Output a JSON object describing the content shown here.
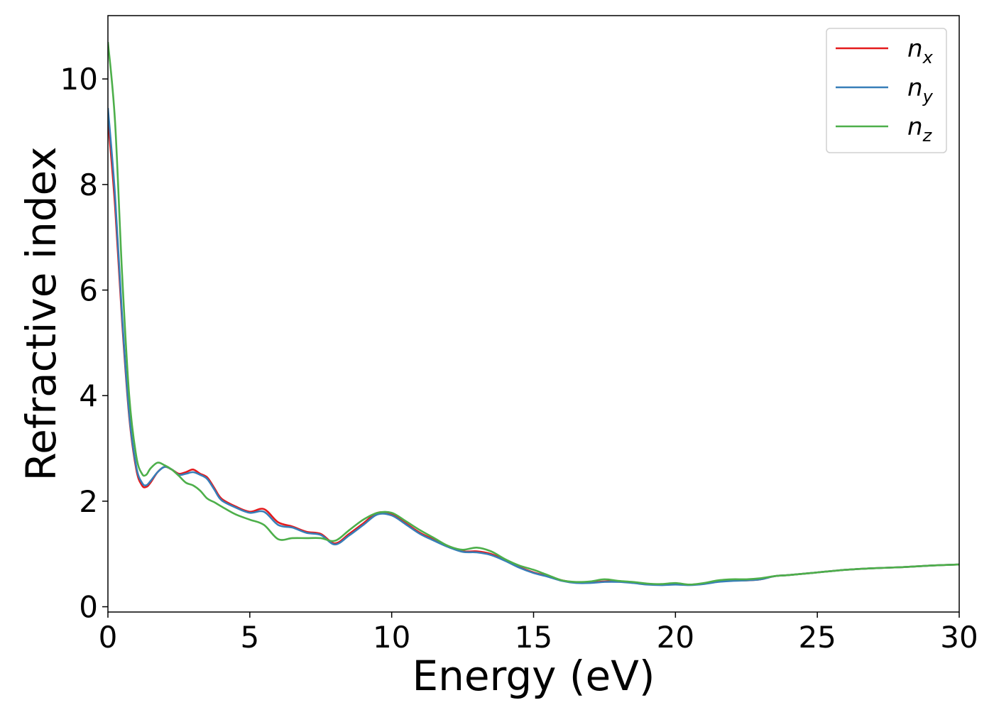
{
  "chart_data": {
    "type": "line",
    "title": "",
    "xlabel": "Energy (eV)",
    "ylabel": "Refractive index",
    "xlim": [
      0,
      30
    ],
    "ylim": [
      -0.1,
      11.2
    ],
    "xticks": [
      0,
      5,
      10,
      15,
      20,
      25,
      30
    ],
    "yticks": [
      0,
      2,
      4,
      6,
      8,
      10
    ],
    "grid": false,
    "legend_position": "top-right",
    "series": [
      {
        "name": "n",
        "sub": "x",
        "color": "#e41a1c",
        "x": [
          0,
          0.25,
          0.5,
          0.75,
          1.0,
          1.2,
          1.35,
          1.5,
          1.75,
          2.0,
          2.25,
          2.5,
          2.75,
          3.0,
          3.25,
          3.5,
          3.75,
          4.0,
          4.5,
          5.0,
          5.5,
          6.0,
          6.5,
          7.0,
          7.5,
          8.0,
          8.5,
          9.0,
          9.5,
          10.0,
          10.5,
          11.0,
          11.5,
          12.0,
          12.5,
          13.0,
          13.5,
          14.0,
          14.5,
          15.0,
          15.5,
          16.0,
          16.5,
          17.0,
          17.5,
          18.0,
          18.5,
          19.0,
          19.5,
          20.0,
          20.5,
          21.0,
          21.5,
          22.0,
          22.5,
          23.0,
          23.5,
          24.0,
          25.0,
          26.0,
          27.0,
          28.0,
          29.0,
          30.0
        ],
        "y": [
          9.25,
          7.6,
          5.4,
          3.6,
          2.6,
          2.3,
          2.27,
          2.35,
          2.55,
          2.65,
          2.6,
          2.52,
          2.55,
          2.6,
          2.52,
          2.45,
          2.25,
          2.05,
          1.9,
          1.8,
          1.85,
          1.6,
          1.52,
          1.42,
          1.38,
          1.2,
          1.38,
          1.58,
          1.78,
          1.75,
          1.58,
          1.4,
          1.27,
          1.15,
          1.05,
          1.05,
          1.0,
          0.88,
          0.75,
          0.65,
          0.58,
          0.5,
          0.46,
          0.46,
          0.48,
          0.48,
          0.46,
          0.43,
          0.42,
          0.43,
          0.42,
          0.44,
          0.48,
          0.5,
          0.5,
          0.52,
          0.58,
          0.6,
          0.65,
          0.7,
          0.73,
          0.75,
          0.78,
          0.8
        ]
      },
      {
        "name": "n",
        "sub": "y",
        "color": "#377eb8",
        "x": [
          0,
          0.25,
          0.5,
          0.75,
          1.0,
          1.2,
          1.35,
          1.5,
          1.75,
          2.0,
          2.25,
          2.5,
          2.75,
          3.0,
          3.25,
          3.5,
          3.75,
          4.0,
          4.5,
          5.0,
          5.5,
          6.0,
          6.5,
          7.0,
          7.5,
          8.0,
          8.5,
          9.0,
          9.5,
          10.0,
          10.5,
          11.0,
          11.5,
          12.0,
          12.5,
          13.0,
          13.5,
          14.0,
          14.5,
          15.0,
          15.5,
          16.0,
          16.5,
          17.0,
          17.5,
          18.0,
          18.5,
          19.0,
          19.5,
          20.0,
          20.5,
          21.0,
          21.5,
          22.0,
          22.5,
          23.0,
          23.5,
          24.0,
          25.0,
          26.0,
          27.0,
          28.0,
          29.0,
          30.0
        ],
        "y": [
          9.45,
          7.8,
          5.5,
          3.65,
          2.65,
          2.35,
          2.3,
          2.38,
          2.55,
          2.65,
          2.6,
          2.5,
          2.52,
          2.55,
          2.5,
          2.42,
          2.22,
          2.02,
          1.88,
          1.78,
          1.8,
          1.55,
          1.5,
          1.4,
          1.36,
          1.18,
          1.35,
          1.55,
          1.75,
          1.73,
          1.56,
          1.38,
          1.25,
          1.13,
          1.04,
          1.03,
          0.98,
          0.87,
          0.74,
          0.64,
          0.57,
          0.49,
          0.45,
          0.45,
          0.47,
          0.47,
          0.45,
          0.42,
          0.41,
          0.42,
          0.41,
          0.43,
          0.47,
          0.49,
          0.5,
          0.52,
          0.58,
          0.6,
          0.65,
          0.7,
          0.73,
          0.75,
          0.78,
          0.8
        ]
      },
      {
        "name": "n",
        "sub": "z",
        "color": "#4daf4a",
        "x": [
          0,
          0.25,
          0.5,
          0.75,
          1.0,
          1.2,
          1.35,
          1.5,
          1.75,
          2.0,
          2.25,
          2.5,
          2.75,
          3.0,
          3.25,
          3.5,
          3.75,
          4.0,
          4.5,
          5.0,
          5.5,
          6.0,
          6.5,
          7.0,
          7.5,
          8.0,
          8.5,
          9.0,
          9.5,
          10.0,
          10.5,
          11.0,
          11.5,
          12.0,
          12.5,
          13.0,
          13.5,
          14.0,
          14.5,
          15.0,
          15.5,
          16.0,
          16.5,
          17.0,
          17.5,
          18.0,
          18.5,
          19.0,
          19.5,
          20.0,
          20.5,
          21.0,
          21.5,
          22.0,
          22.5,
          23.0,
          23.5,
          24.0,
          25.0,
          26.0,
          27.0,
          28.0,
          29.0,
          30.0
        ],
        "y": [
          10.7,
          9.2,
          6.3,
          4.0,
          2.85,
          2.52,
          2.5,
          2.62,
          2.73,
          2.68,
          2.6,
          2.48,
          2.35,
          2.3,
          2.2,
          2.05,
          1.98,
          1.9,
          1.75,
          1.65,
          1.55,
          1.28,
          1.3,
          1.3,
          1.3,
          1.25,
          1.45,
          1.65,
          1.78,
          1.78,
          1.62,
          1.45,
          1.3,
          1.15,
          1.08,
          1.12,
          1.05,
          0.9,
          0.78,
          0.7,
          0.6,
          0.5,
          0.47,
          0.48,
          0.52,
          0.49,
          0.47,
          0.44,
          0.43,
          0.45,
          0.42,
          0.45,
          0.5,
          0.52,
          0.52,
          0.54,
          0.58,
          0.6,
          0.65,
          0.7,
          0.73,
          0.75,
          0.78,
          0.8
        ]
      }
    ]
  }
}
